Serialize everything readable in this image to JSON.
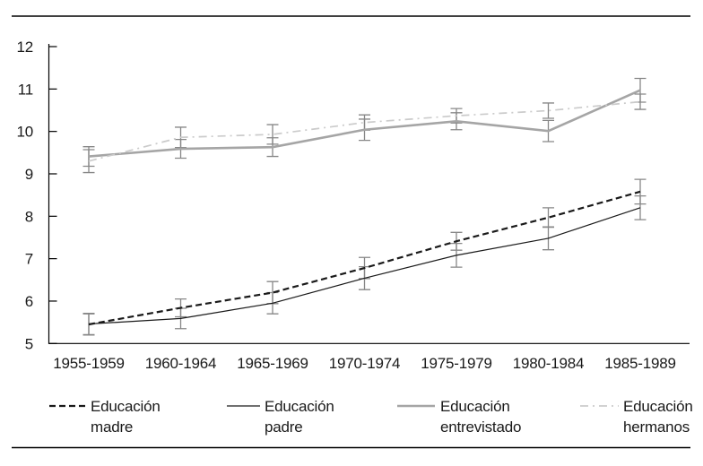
{
  "page": {
    "background": "#ffffff",
    "rule_color": "#000000"
  },
  "chart_data": {
    "type": "line",
    "title": "",
    "xlabel": "",
    "ylabel": "",
    "categories": [
      "1955-1959",
      "1960-1964",
      "1965-1969",
      "1970-1974",
      "1975-1979",
      "1980-1984",
      "1985-1989"
    ],
    "series": [
      {
        "name": "Educación madre",
        "legend_lines": [
          "Educación",
          "madre"
        ],
        "color": "#1a1a1a",
        "line_style": "dashed",
        "values": [
          5.45,
          5.84,
          6.2,
          6.78,
          7.41,
          7.97,
          8.58
        ],
        "errors": [
          0.25,
          0.21,
          0.26,
          0.25,
          0.21,
          0.23,
          0.29
        ]
      },
      {
        "name": "Educación padre",
        "legend_lines": [
          "Educación",
          "padre"
        ],
        "color": "#1a1a1a",
        "line_style": "solid-thin",
        "values": [
          5.46,
          5.59,
          5.95,
          6.54,
          7.08,
          7.48,
          8.2
        ],
        "errors": [
          0.25,
          0.24,
          0.25,
          0.27,
          0.28,
          0.27,
          0.28
        ]
      },
      {
        "name": "Educación entrevistado",
        "legend_lines": [
          "Educación",
          "entrevistado"
        ],
        "color": "#a5a5a5",
        "line_style": "solid-thick",
        "values": [
          9.41,
          9.59,
          9.63,
          10.04,
          10.24,
          10.01,
          10.97
        ],
        "errors": [
          0.23,
          0.22,
          0.22,
          0.25,
          0.2,
          0.25,
          0.28
        ]
      },
      {
        "name": "Educación hermanos",
        "legend_lines": [
          "Educación",
          "hermanos"
        ],
        "color": "#cbcbcb",
        "line_style": "dash-dot",
        "values": [
          9.3,
          9.86,
          9.93,
          10.21,
          10.37,
          10.49,
          10.7
        ],
        "errors": [
          0.27,
          0.24,
          0.23,
          0.18,
          0.17,
          0.18,
          0.18
        ]
      }
    ],
    "ylim": [
      5,
      12
    ],
    "yticks": [
      5,
      6,
      7,
      8,
      9,
      10,
      11,
      12
    ],
    "grid": false,
    "error_bars": true,
    "error_bar_color": "#878787",
    "axis_color": "#000000",
    "text_color": "#1a1a1a",
    "legend_position": "bottom"
  }
}
